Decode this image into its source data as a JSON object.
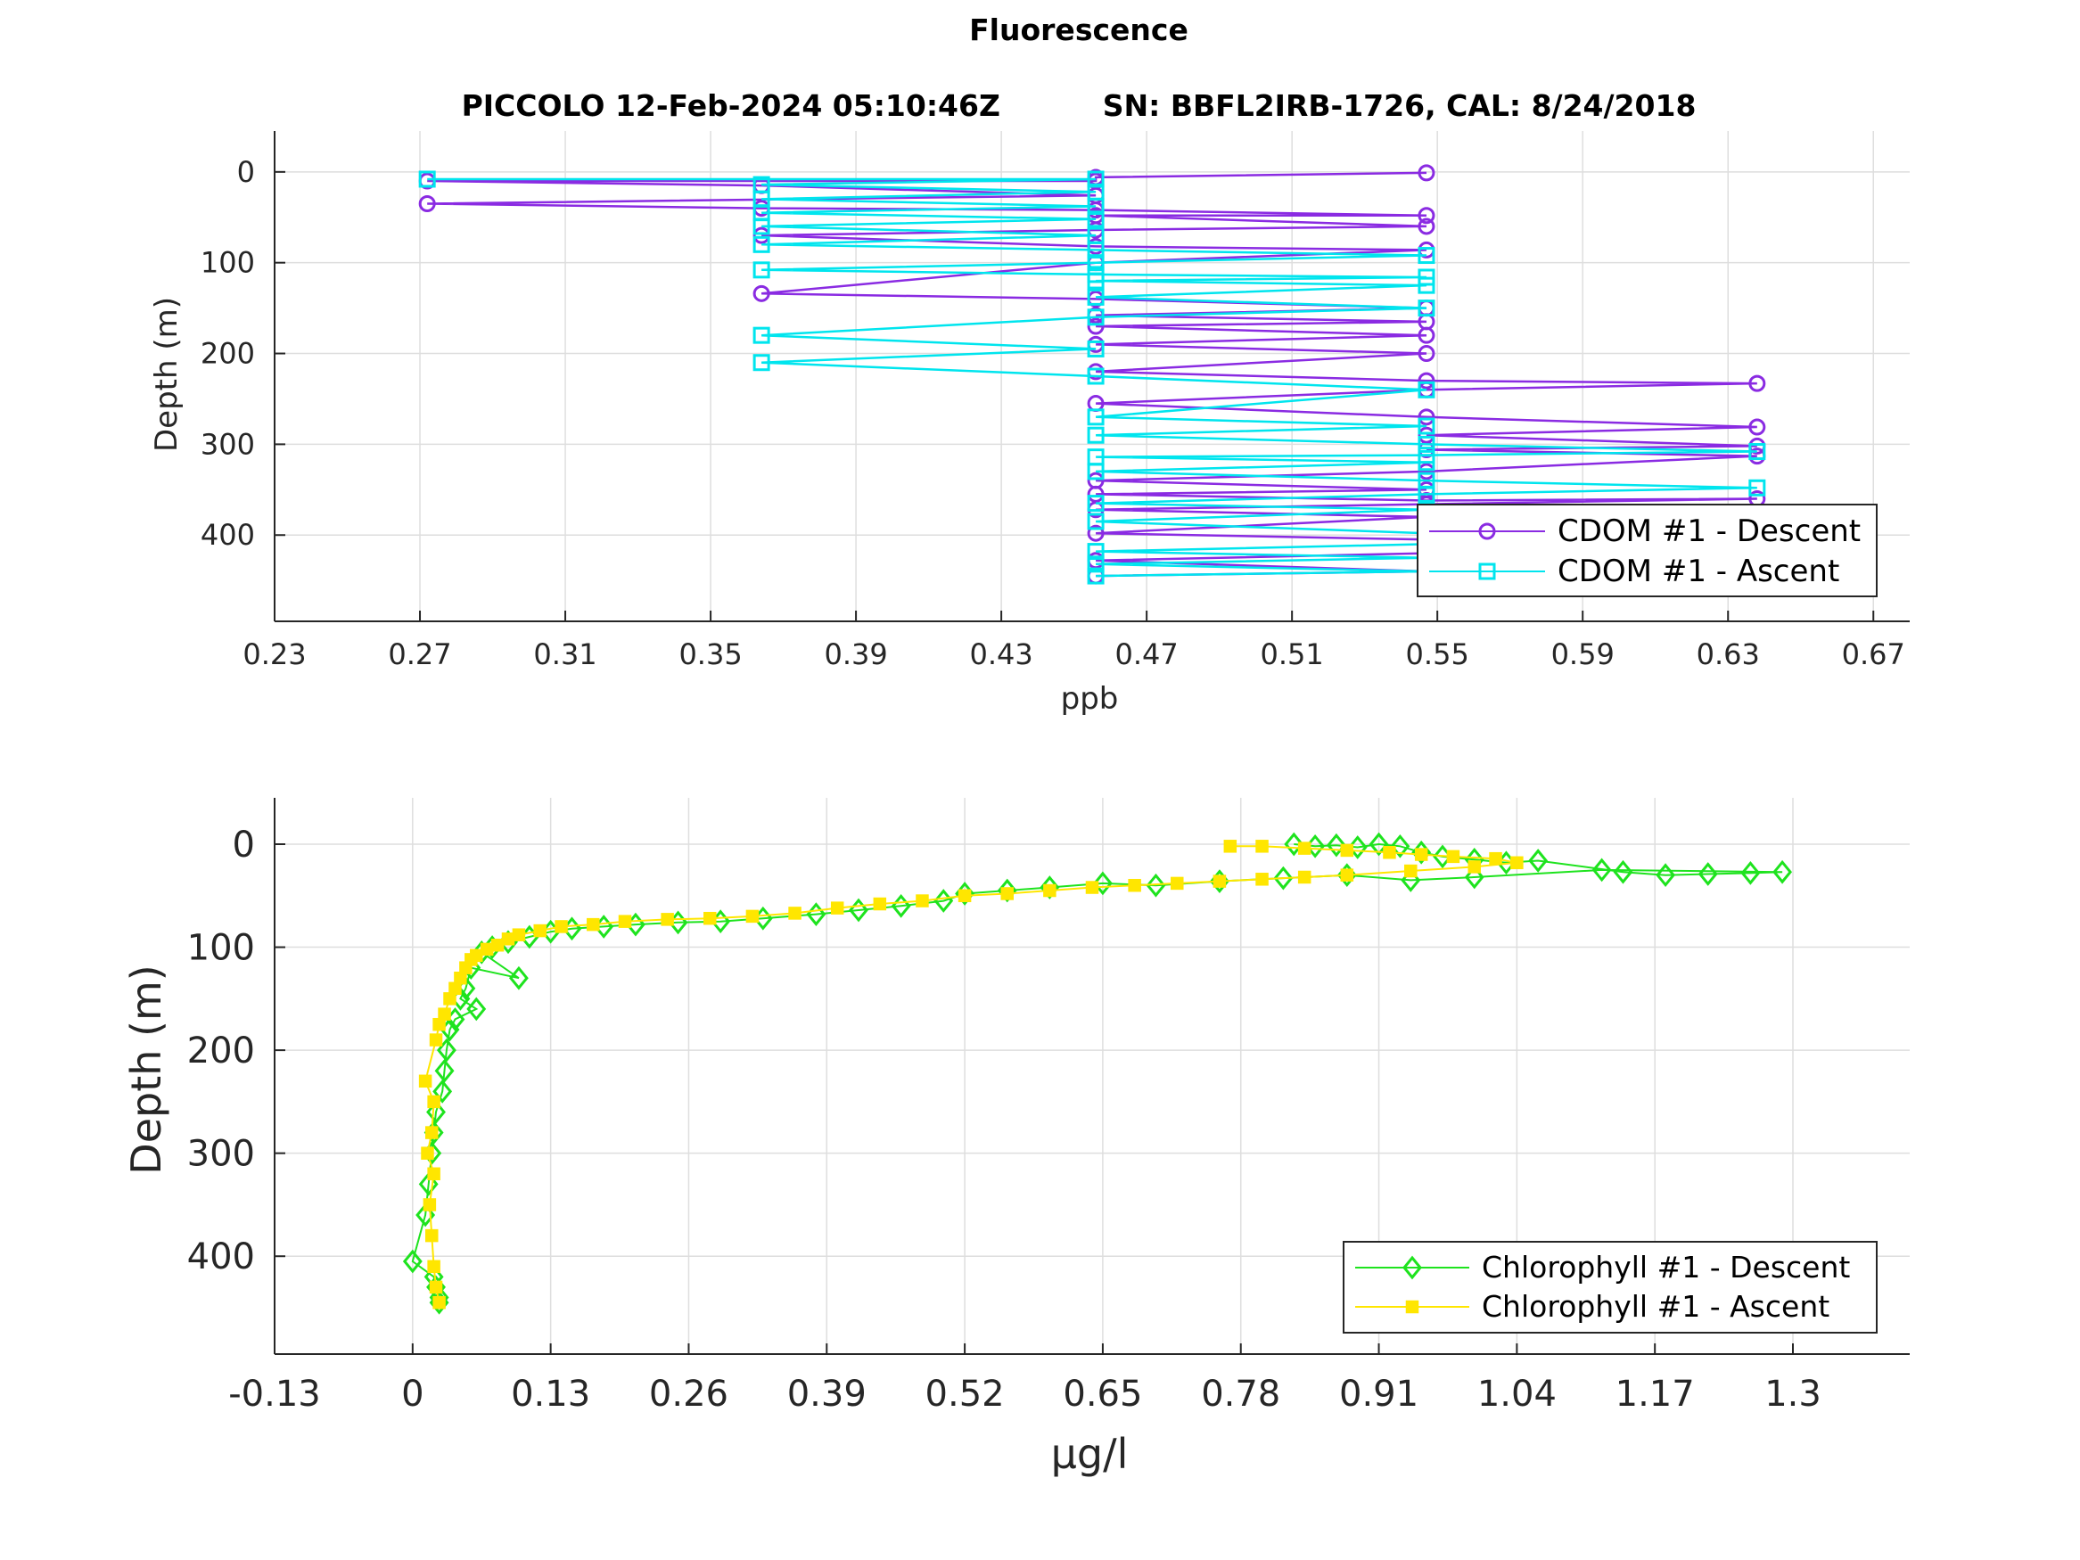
{
  "figure": {
    "title": "Fluorescence",
    "subtitle": "PICCOLO 12-Feb-2024 05:10:46Z          SN: BBFL2IRB-1726, CAL: 8/24/2018"
  },
  "colors": {
    "cdom_descent": "#8a2be2",
    "cdom_ascent": "#00e5ee",
    "chl_descent": "#1ee31e",
    "chl_ascent": "#ffe600",
    "grid": "#dedede",
    "axis": "#262626"
  },
  "chart_data": [
    {
      "type": "line",
      "xlabel": "ppb",
      "ylabel": "Depth (m)",
      "xlim": [
        0.23,
        0.68
      ],
      "ylim": [
        -45,
        495
      ],
      "y_reversed": true,
      "grid": true,
      "xticks": [
        "0.23",
        "0.27",
        "0.31",
        "0.35",
        "0.39",
        "0.43",
        "0.47",
        "0.51",
        "0.55",
        "0.59",
        "0.63",
        "0.67"
      ],
      "yticks": [
        "0",
        "100",
        "200",
        "300",
        "400"
      ],
      "legend_position": "bottom-right",
      "series": [
        {
          "name": "CDOM #1 - Descent",
          "marker": "circle",
          "x": [
            0.547,
            0.456,
            0.456,
            0.272,
            0.364,
            0.456,
            0.272,
            0.364,
            0.456,
            0.547,
            0.456,
            0.547,
            0.456,
            0.364,
            0.456,
            0.547,
            0.456,
            0.364,
            0.456,
            0.547,
            0.456,
            0.547,
            0.456,
            0.547,
            0.456,
            0.547,
            0.456,
            0.547,
            0.638,
            0.547,
            0.456,
            0.547,
            0.638,
            0.547,
            0.638,
            0.547,
            0.638,
            0.547,
            0.456,
            0.547,
            0.456,
            0.547,
            0.638,
            0.547,
            0.456,
            0.547,
            0.456,
            0.547,
            0.638,
            0.547,
            0.456,
            0.547,
            0.456
          ],
          "y": [
            1,
            6,
            10,
            10,
            15,
            26,
            35,
            40,
            42,
            48,
            48,
            60,
            64,
            70,
            82,
            86,
            100,
            134,
            140,
            150,
            158,
            165,
            170,
            180,
            190,
            200,
            220,
            230,
            233,
            240,
            255,
            270,
            281,
            290,
            302,
            306,
            313,
            330,
            340,
            350,
            355,
            362,
            360,
            366,
            372,
            380,
            398,
            405,
            411,
            420,
            428,
            440,
            445
          ]
        },
        {
          "name": "CDOM #1 - Ascent",
          "marker": "square",
          "x": [
            0.456,
            0.547,
            0.456,
            0.547,
            0.456,
            0.547,
            0.638,
            0.547,
            0.456,
            0.547,
            0.456,
            0.547,
            0.638,
            0.547,
            0.456,
            0.547,
            0.456,
            0.547,
            0.638,
            0.547,
            0.456,
            0.547,
            0.456,
            0.547,
            0.456,
            0.364,
            0.456,
            0.364,
            0.456,
            0.547,
            0.456,
            0.547,
            0.456,
            0.547,
            0.456,
            0.364,
            0.456,
            0.547,
            0.456,
            0.364,
            0.456,
            0.364,
            0.456,
            0.364,
            0.456,
            0.364,
            0.456,
            0.364,
            0.456,
            0.272
          ],
          "y": [
            445,
            440,
            432,
            425,
            418,
            410,
            405,
            398,
            385,
            372,
            365,
            355,
            348,
            340,
            330,
            320,
            314,
            312,
            308,
            300,
            290,
            280,
            270,
            240,
            225,
            210,
            195,
            180,
            160,
            150,
            138,
            125,
            120,
            116,
            113,
            108,
            100,
            92,
            86,
            80,
            70,
            60,
            52,
            45,
            38,
            30,
            22,
            14,
            8,
            8
          ]
        }
      ]
    },
    {
      "type": "line",
      "xlabel": "μg/l",
      "ylabel": "Depth (m)",
      "xlim": [
        -0.13,
        1.41
      ],
      "ylim": [
        -45,
        495
      ],
      "y_reversed": true,
      "grid": true,
      "xticks": [
        "-0.13",
        "0",
        "0.13",
        "0.26",
        "0.39",
        "0.52",
        "0.65",
        "0.78",
        "0.91",
        "1.04",
        "1.17",
        "1.3"
      ],
      "yticks": [
        "0",
        "100",
        "200",
        "300",
        "400"
      ],
      "legend_position": "bottom-right",
      "series": [
        {
          "name": "Chlorophyll #1 - Descent",
          "marker": "diamond",
          "x": [
            0.83,
            0.85,
            0.87,
            0.89,
            0.91,
            0.93,
            0.95,
            0.97,
            1.0,
            1.03,
            1.06,
            1.14,
            1.18,
            1.22,
            1.26,
            1.29,
            1.12,
            1.0,
            0.94,
            0.88,
            0.82,
            0.76,
            0.7,
            0.65,
            0.6,
            0.56,
            0.52,
            0.5,
            0.46,
            0.42,
            0.38,
            0.33,
            0.29,
            0.25,
            0.21,
            0.18,
            0.15,
            0.13,
            0.11,
            0.09,
            0.075,
            0.065,
            0.1,
            0.055,
            0.05,
            0.045,
            0.06,
            0.04,
            0.035,
            0.032,
            0.03,
            0.028,
            0.022,
            0.02,
            0.018,
            0.015,
            0.012,
            0.0,
            0.02,
            0.022,
            0.025,
            0.025
          ],
          "y": [
            0,
            2,
            1,
            3,
            0,
            2,
            8,
            12,
            15,
            18,
            16,
            27,
            30,
            29,
            28,
            27,
            25,
            32,
            35,
            30,
            33,
            36,
            40,
            38,
            42,
            45,
            48,
            55,
            60,
            64,
            68,
            72,
            75,
            76,
            78,
            80,
            82,
            85,
            90,
            95,
            100,
            105,
            130,
            120,
            140,
            150,
            160,
            170,
            180,
            200,
            220,
            240,
            260,
            280,
            300,
            330,
            360,
            405,
            420,
            430,
            440,
            445
          ]
        },
        {
          "name": "Chlorophyll #1 - Ascent",
          "marker": "filled-square",
          "x": [
            0.025,
            0.022,
            0.02,
            0.018,
            0.016,
            0.02,
            0.014,
            0.018,
            0.02,
            0.012,
            0.022,
            0.025,
            0.03,
            0.035,
            0.04,
            0.045,
            0.05,
            0.055,
            0.06,
            0.07,
            0.08,
            0.09,
            0.1,
            0.12,
            0.14,
            0.17,
            0.2,
            0.24,
            0.28,
            0.32,
            0.36,
            0.4,
            0.44,
            0.48,
            0.52,
            0.56,
            0.6,
            0.64,
            0.68,
            0.72,
            0.76,
            0.8,
            0.84,
            0.88,
            0.94,
            1.0,
            1.04,
            1.02,
            0.98,
            0.95,
            0.92,
            0.88,
            0.84,
            0.8,
            0.77
          ],
          "y": [
            445,
            430,
            410,
            380,
            350,
            320,
            300,
            280,
            250,
            230,
            190,
            175,
            165,
            150,
            140,
            130,
            120,
            112,
            108,
            102,
            98,
            92,
            88,
            84,
            80,
            78,
            75,
            73,
            72,
            70,
            67,
            62,
            58,
            55,
            50,
            48,
            45,
            42,
            40,
            38,
            36,
            34,
            32,
            30,
            26,
            22,
            18,
            14,
            12,
            10,
            8,
            6,
            4,
            2,
            2
          ]
        }
      ]
    }
  ]
}
